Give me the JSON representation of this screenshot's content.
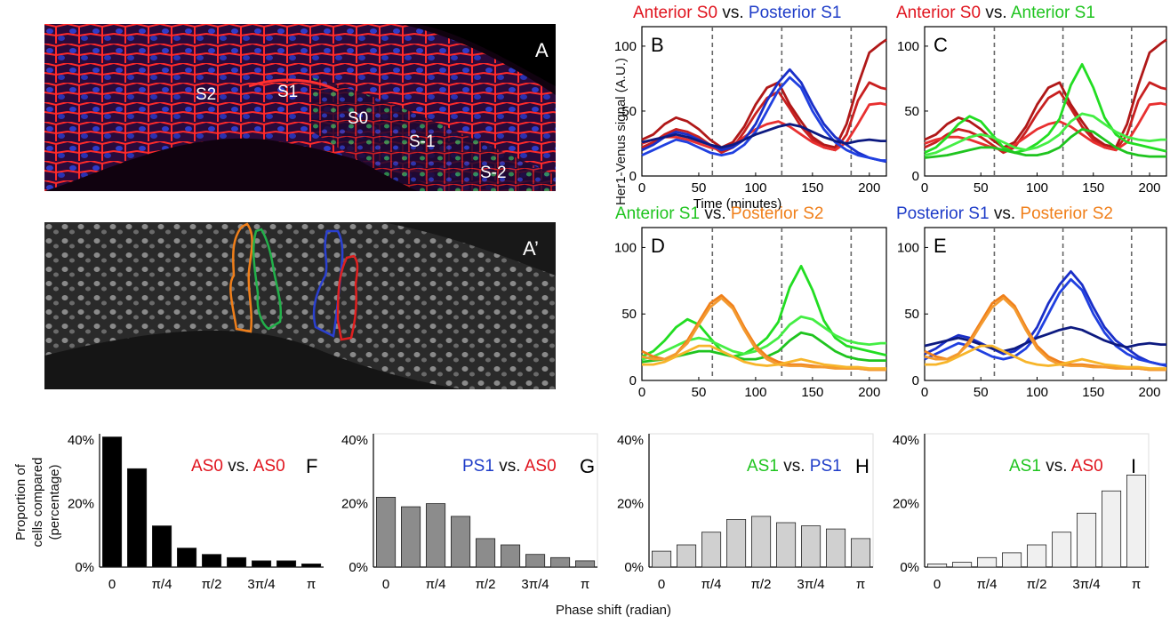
{
  "panel_letters": {
    "a": "A",
    "a_prime": "A’",
    "b": "B",
    "c": "C",
    "d": "D",
    "e": "E",
    "f": "F",
    "g": "G",
    "h": "H",
    "i": "I"
  },
  "micro_labels": [
    "S2",
    "S1",
    "S0",
    "S-1",
    "S-2"
  ],
  "colors": {
    "anterior_s0": "#b01818",
    "anterior_s0_light": "#e83030",
    "posterior_s1": "#1a2fc8",
    "posterior_s1_dark": "#0d1a80",
    "anterior_s1": "#22dd22",
    "posterior_s2": "#f07f1a",
    "posterior_s2_light": "#f7b52a",
    "title_red": "#e0141e",
    "title_blue": "#1e3cc8",
    "title_green": "#1fc41f",
    "title_orange": "#f07f1a",
    "bar_f": "#000000",
    "bar_g": "#8c8c8c",
    "bar_h": "#d0d0d0",
    "bar_i": "#f0f0f0"
  },
  "axis_text": {
    "her1_ylabel": "Her1-Venus signal (A.U.)",
    "time_xlabel": "Time (minutes)",
    "proportion_ylabel_1": "Proportion of",
    "proportion_ylabel_2": "cells compared",
    "proportion_ylabel_3": "(percentage)",
    "phase_xlabel": "Phase shift (radian)",
    "vs": "vs."
  },
  "line_titles": {
    "b": [
      "Anterior S0",
      "Posterior S1"
    ],
    "c": [
      "Anterior S0",
      "Anterior S1"
    ],
    "d": [
      "Anterior S1",
      "Posterior S2"
    ],
    "e": [
      "Posterior S1",
      "Posterior S2"
    ]
  },
  "bar_titles": {
    "f": [
      "AS0",
      "AS0"
    ],
    "g": [
      "PS1",
      "AS0"
    ],
    "h": [
      "AS1",
      "PS1"
    ],
    "i": [
      "AS1",
      "AS0"
    ]
  },
  "chart_data": [
    {
      "id": "B",
      "type": "line",
      "title": "Anterior S0 vs. Posterior S1",
      "xlabel": "Time (minutes)",
      "ylabel": "Her1-Venus signal (A.U.)",
      "xlim": [
        0,
        215
      ],
      "ylim": [
        0,
        115
      ],
      "xticks": [
        0,
        50,
        100,
        150,
        200
      ],
      "yticks": [
        0,
        50,
        100
      ],
      "vlines": [
        62,
        123,
        184
      ],
      "x": [
        0,
        10,
        20,
        30,
        40,
        50,
        60,
        70,
        80,
        90,
        100,
        110,
        120,
        130,
        140,
        150,
        160,
        170,
        180,
        190,
        200,
        210,
        215
      ],
      "series": [
        {
          "name": "Anterior S0",
          "color": "#b01818",
          "values": [
            28,
            32,
            40,
            45,
            42,
            36,
            28,
            22,
            26,
            38,
            55,
            68,
            72,
            55,
            42,
            30,
            24,
            22,
            40,
            70,
            95,
            102,
            105
          ]
        },
        {
          "name": "Anterior S0",
          "color": "#c82020",
          "values": [
            22,
            26,
            32,
            36,
            34,
            30,
            24,
            18,
            22,
            34,
            48,
            60,
            65,
            52,
            38,
            28,
            22,
            20,
            32,
            58,
            72,
            68,
            67
          ]
        },
        {
          "name": "Anterior S0",
          "color": "#e83030",
          "values": [
            25,
            28,
            30,
            30,
            28,
            25,
            22,
            20,
            24,
            30,
            36,
            40,
            42,
            38,
            32,
            26,
            22,
            20,
            26,
            40,
            55,
            56,
            55
          ]
        },
        {
          "name": "Posterior S1",
          "color": "#1a2fc8",
          "values": [
            20,
            24,
            30,
            34,
            32,
            28,
            24,
            20,
            22,
            28,
            40,
            58,
            72,
            82,
            72,
            55,
            40,
            30,
            24,
            18,
            14,
            12,
            11
          ]
        },
        {
          "name": "Posterior S1",
          "color": "#2040e0",
          "values": [
            16,
            20,
            24,
            28,
            26,
            22,
            18,
            16,
            18,
            24,
            34,
            50,
            66,
            76,
            68,
            50,
            36,
            26,
            20,
            16,
            14,
            12,
            12
          ]
        },
        {
          "name": "Posterior S1",
          "color": "#0d1a80",
          "values": [
            26,
            28,
            30,
            32,
            30,
            27,
            24,
            22,
            24,
            28,
            32,
            35,
            38,
            40,
            38,
            34,
            30,
            27,
            25,
            27,
            28,
            27,
            27
          ]
        }
      ]
    },
    {
      "id": "C",
      "type": "line",
      "title": "Anterior S0 vs. Anterior S1",
      "xlim": [
        0,
        215
      ],
      "ylim": [
        0,
        115
      ],
      "xticks": [
        0,
        50,
        100,
        150,
        200
      ],
      "yticks": [
        0,
        50,
        100
      ],
      "vlines": [
        62,
        123,
        184
      ],
      "x": [
        0,
        10,
        20,
        30,
        40,
        50,
        60,
        70,
        80,
        90,
        100,
        110,
        120,
        130,
        140,
        150,
        160,
        170,
        180,
        190,
        200,
        210,
        215
      ],
      "series": [
        {
          "name": "Anterior S0",
          "color": "#b01818",
          "values": [
            28,
            32,
            40,
            45,
            42,
            36,
            28,
            22,
            26,
            38,
            55,
            68,
            72,
            55,
            42,
            30,
            24,
            22,
            40,
            70,
            95,
            102,
            105
          ]
        },
        {
          "name": "Anterior S0",
          "color": "#c82020",
          "values": [
            22,
            26,
            32,
            36,
            34,
            30,
            24,
            18,
            22,
            34,
            48,
            60,
            65,
            52,
            38,
            28,
            22,
            20,
            32,
            58,
            72,
            68,
            67
          ]
        },
        {
          "name": "Anterior S0",
          "color": "#e83030",
          "values": [
            25,
            28,
            30,
            30,
            28,
            25,
            22,
            20,
            24,
            30,
            36,
            40,
            42,
            38,
            32,
            26,
            22,
            20,
            26,
            40,
            55,
            56,
            55
          ]
        },
        {
          "name": "Anterior S1",
          "color": "#22dd22",
          "values": [
            18,
            22,
            30,
            40,
            46,
            42,
            32,
            22,
            18,
            20,
            25,
            32,
            44,
            70,
            86,
            68,
            45,
            32,
            26,
            24,
            22,
            20,
            19
          ]
        },
        {
          "name": "Anterior S1",
          "color": "#44ee44",
          "values": [
            16,
            18,
            22,
            26,
            30,
            32,
            30,
            26,
            22,
            20,
            22,
            26,
            32,
            42,
            48,
            46,
            40,
            34,
            30,
            28,
            27,
            28,
            28
          ]
        },
        {
          "name": "Anterior S1",
          "color": "#1fc41f",
          "values": [
            14,
            15,
            16,
            18,
            20,
            22,
            22,
            20,
            18,
            16,
            16,
            18,
            22,
            30,
            36,
            34,
            28,
            22,
            18,
            16,
            15,
            15,
            15
          ]
        }
      ]
    },
    {
      "id": "D",
      "type": "line",
      "title": "Anterior S1 vs. Posterior S2",
      "xlim": [
        0,
        215
      ],
      "ylim": [
        0,
        115
      ],
      "xticks": [
        0,
        50,
        100,
        150,
        200
      ],
      "yticks": [
        0,
        50,
        100
      ],
      "vlines": [
        62,
        123,
        184
      ],
      "x": [
        0,
        10,
        20,
        30,
        40,
        50,
        60,
        70,
        80,
        90,
        100,
        110,
        120,
        130,
        140,
        150,
        160,
        170,
        180,
        190,
        200,
        210,
        215
      ],
      "series": [
        {
          "name": "Anterior S1",
          "color": "#22dd22",
          "values": [
            18,
            22,
            30,
            40,
            46,
            42,
            32,
            22,
            18,
            20,
            25,
            32,
            44,
            70,
            86,
            68,
            45,
            32,
            26,
            24,
            22,
            20,
            19
          ]
        },
        {
          "name": "Anterior S1",
          "color": "#44ee44",
          "values": [
            16,
            18,
            22,
            26,
            30,
            32,
            30,
            26,
            22,
            20,
            22,
            26,
            32,
            42,
            48,
            46,
            40,
            34,
            30,
            28,
            27,
            28,
            28
          ]
        },
        {
          "name": "Anterior S1",
          "color": "#1fc41f",
          "values": [
            14,
            15,
            16,
            18,
            20,
            22,
            22,
            20,
            18,
            16,
            16,
            18,
            22,
            30,
            36,
            34,
            28,
            22,
            18,
            16,
            15,
            15,
            15
          ]
        },
        {
          "name": "Posterior S2",
          "color": "#f07f1a",
          "values": [
            22,
            18,
            16,
            20,
            30,
            44,
            58,
            64,
            56,
            40,
            26,
            18,
            14,
            12,
            12,
            11,
            10,
            10,
            9,
            9,
            8,
            8,
            8
          ]
        },
        {
          "name": "Posterior S2",
          "color": "#f39a30",
          "values": [
            18,
            16,
            16,
            20,
            28,
            42,
            55,
            62,
            54,
            38,
            24,
            16,
            12,
            11,
            11,
            10,
            10,
            9,
            9,
            9,
            8,
            8,
            8
          ]
        },
        {
          "name": "Posterior S2",
          "color": "#f7b52a",
          "values": [
            12,
            12,
            14,
            18,
            22,
            26,
            26,
            22,
            18,
            14,
            12,
            11,
            12,
            14,
            16,
            14,
            12,
            11,
            10,
            10,
            9,
            9,
            9
          ]
        }
      ]
    },
    {
      "id": "E",
      "type": "line",
      "title": "Posterior S1 vs. Posterior S2",
      "xlim": [
        0,
        215
      ],
      "ylim": [
        0,
        115
      ],
      "xticks": [
        0,
        50,
        100,
        150,
        200
      ],
      "yticks": [
        0,
        50,
        100
      ],
      "vlines": [
        62,
        123,
        184
      ],
      "x": [
        0,
        10,
        20,
        30,
        40,
        50,
        60,
        70,
        80,
        90,
        100,
        110,
        120,
        130,
        140,
        150,
        160,
        170,
        180,
        190,
        200,
        210,
        215
      ],
      "series": [
        {
          "name": "Posterior S1",
          "color": "#1a2fc8",
          "values": [
            20,
            24,
            30,
            34,
            32,
            28,
            24,
            20,
            22,
            28,
            40,
            58,
            72,
            82,
            72,
            55,
            40,
            30,
            24,
            18,
            14,
            12,
            11
          ]
        },
        {
          "name": "Posterior S1",
          "color": "#2040e0",
          "values": [
            16,
            20,
            24,
            28,
            26,
            22,
            18,
            16,
            18,
            24,
            34,
            50,
            66,
            76,
            68,
            50,
            36,
            26,
            20,
            16,
            14,
            12,
            12
          ]
        },
        {
          "name": "Posterior S1",
          "color": "#0d1a80",
          "values": [
            26,
            28,
            30,
            32,
            30,
            27,
            24,
            22,
            24,
            28,
            32,
            35,
            38,
            40,
            38,
            34,
            30,
            27,
            25,
            27,
            28,
            27,
            27
          ]
        },
        {
          "name": "Posterior S2",
          "color": "#f07f1a",
          "values": [
            22,
            18,
            16,
            20,
            30,
            44,
            58,
            64,
            56,
            40,
            26,
            18,
            14,
            12,
            12,
            11,
            10,
            10,
            9,
            9,
            8,
            8,
            8
          ]
        },
        {
          "name": "Posterior S2",
          "color": "#f39a30",
          "values": [
            18,
            16,
            16,
            20,
            28,
            42,
            55,
            62,
            54,
            38,
            24,
            16,
            12,
            11,
            11,
            10,
            10,
            9,
            9,
            9,
            8,
            8,
            8
          ]
        },
        {
          "name": "Posterior S2",
          "color": "#f7b52a",
          "values": [
            12,
            12,
            14,
            18,
            22,
            26,
            26,
            22,
            18,
            14,
            12,
            11,
            12,
            14,
            16,
            14,
            12,
            11,
            10,
            10,
            9,
            9,
            9
          ]
        }
      ]
    },
    {
      "id": "F",
      "type": "bar",
      "title": "AS0 vs. AS0",
      "ylabel": "Proportion of cells compared (percentage)",
      "xlabel": "Phase shift (radian)",
      "ylim": [
        0,
        42
      ],
      "yticks": [
        "0%",
        "20%",
        "40%"
      ],
      "xticks": [
        "0",
        "π/4",
        "π/2",
        "3π/4",
        "π"
      ],
      "values": [
        41,
        31,
        13,
        6,
        4,
        3,
        2,
        2,
        1
      ],
      "color": "#000000"
    },
    {
      "id": "G",
      "type": "bar",
      "title": "PS1 vs. AS0",
      "ylim": [
        0,
        42
      ],
      "yticks": [
        "0%",
        "20%",
        "40%"
      ],
      "xticks": [
        "0",
        "π/4",
        "π/2",
        "3π/4",
        "π"
      ],
      "values": [
        22,
        19,
        20,
        16,
        9,
        7,
        4,
        3,
        2
      ],
      "color": "#8c8c8c"
    },
    {
      "id": "H",
      "type": "bar",
      "title": "AS1 vs. PS1",
      "ylim": [
        0,
        42
      ],
      "yticks": [
        "0%",
        "20%",
        "40%"
      ],
      "xticks": [
        "0",
        "π/4",
        "π/2",
        "3π/4",
        "π"
      ],
      "values": [
        5,
        7,
        11,
        15,
        16,
        14,
        13,
        12,
        9
      ],
      "color": "#d0d0d0"
    },
    {
      "id": "I",
      "type": "bar",
      "title": "AS1 vs. AS0",
      "ylim": [
        0,
        42
      ],
      "yticks": [
        "0%",
        "20%",
        "40%"
      ],
      "xticks": [
        "0",
        "π/4",
        "π/2",
        "3π/4",
        "π"
      ],
      "values": [
        1,
        1.5,
        3,
        4.5,
        7,
        11,
        17,
        24,
        29
      ],
      "color": "#f0f0f0"
    }
  ]
}
